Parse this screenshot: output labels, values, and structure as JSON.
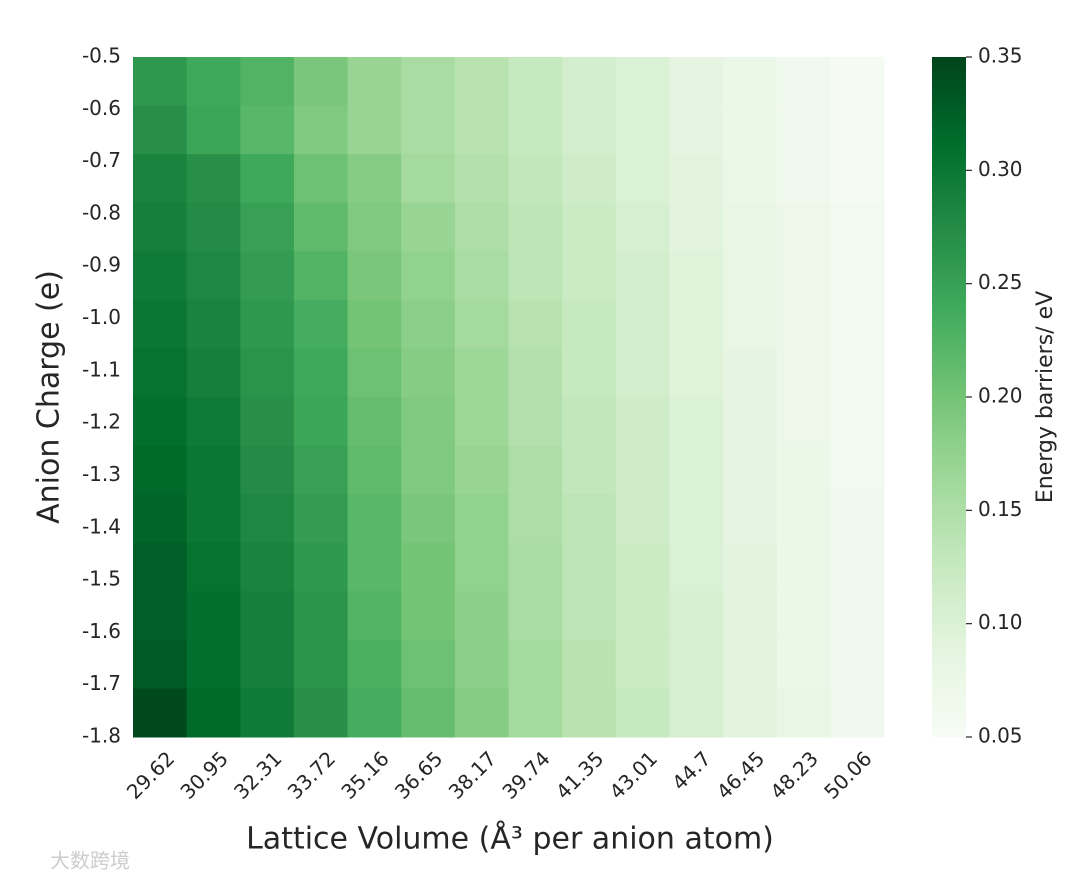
{
  "chart_data": {
    "type": "heatmap",
    "x_label": "Lattice Volume (Å³ per anion atom)",
    "y_label": "Anion Charge (e)",
    "colorbar_label": "Energy barriers/ eV",
    "watermark": "大数跨境",
    "x_categories": [
      "29.62",
      "30.95",
      "32.31",
      "33.72",
      "35.16",
      "36.65",
      "38.17",
      "39.74",
      "41.35",
      "43.01",
      "44.7",
      "46.45",
      "48.23",
      "50.06"
    ],
    "y_categories": [
      "-0.5",
      "-0.6",
      "-0.7",
      "-0.8",
      "-0.9",
      "-1.0",
      "-1.1",
      "-1.2",
      "-1.3",
      "-1.4",
      "-1.5",
      "-1.6",
      "-1.7",
      "-1.8"
    ],
    "z": [
      [
        0.26,
        0.24,
        0.225,
        0.195,
        0.17,
        0.155,
        0.14,
        0.125,
        0.11,
        0.1,
        0.085,
        0.075,
        0.065,
        0.055
      ],
      [
        0.27,
        0.245,
        0.22,
        0.19,
        0.17,
        0.155,
        0.14,
        0.125,
        0.11,
        0.1,
        0.085,
        0.075,
        0.065,
        0.055
      ],
      [
        0.285,
        0.27,
        0.24,
        0.205,
        0.185,
        0.16,
        0.145,
        0.13,
        0.115,
        0.1,
        0.09,
        0.075,
        0.065,
        0.055
      ],
      [
        0.29,
        0.275,
        0.25,
        0.215,
        0.19,
        0.17,
        0.15,
        0.135,
        0.12,
        0.105,
        0.09,
        0.08,
        0.07,
        0.06
      ],
      [
        0.295,
        0.28,
        0.255,
        0.225,
        0.195,
        0.175,
        0.155,
        0.135,
        0.12,
        0.11,
        0.095,
        0.08,
        0.07,
        0.06
      ],
      [
        0.3,
        0.285,
        0.26,
        0.235,
        0.2,
        0.18,
        0.16,
        0.14,
        0.125,
        0.11,
        0.095,
        0.08,
        0.07,
        0.06
      ],
      [
        0.305,
        0.29,
        0.265,
        0.24,
        0.205,
        0.185,
        0.165,
        0.145,
        0.125,
        0.11,
        0.095,
        0.085,
        0.07,
        0.06
      ],
      [
        0.31,
        0.295,
        0.27,
        0.245,
        0.21,
        0.19,
        0.165,
        0.145,
        0.13,
        0.115,
        0.1,
        0.085,
        0.07,
        0.06
      ],
      [
        0.315,
        0.3,
        0.275,
        0.25,
        0.215,
        0.19,
        0.17,
        0.15,
        0.13,
        0.115,
        0.1,
        0.085,
        0.075,
        0.06
      ],
      [
        0.32,
        0.3,
        0.28,
        0.255,
        0.22,
        0.195,
        0.175,
        0.15,
        0.135,
        0.115,
        0.1,
        0.085,
        0.075,
        0.065
      ],
      [
        0.325,
        0.305,
        0.285,
        0.26,
        0.22,
        0.2,
        0.175,
        0.155,
        0.135,
        0.12,
        0.1,
        0.09,
        0.075,
        0.065
      ],
      [
        0.325,
        0.31,
        0.29,
        0.265,
        0.225,
        0.2,
        0.18,
        0.155,
        0.135,
        0.12,
        0.105,
        0.09,
        0.075,
        0.065
      ],
      [
        0.33,
        0.31,
        0.29,
        0.265,
        0.23,
        0.205,
        0.18,
        0.16,
        0.14,
        0.12,
        0.105,
        0.09,
        0.075,
        0.065
      ],
      [
        0.345,
        0.315,
        0.295,
        0.27,
        0.235,
        0.21,
        0.185,
        0.16,
        0.14,
        0.125,
        0.105,
        0.09,
        0.08,
        0.065
      ]
    ],
    "clim": [
      0.05,
      0.35
    ],
    "cticks": [
      0.05,
      {
        "value": 0.1,
        "label": "0.10"
      },
      0.15,
      {
        "value": 0.2,
        "label": "0.20"
      },
      0.25,
      {
        "value": 0.3,
        "label": "0.30"
      },
      0.35
    ],
    "colormap": [
      "#f7fcf5",
      "#e5f5e0",
      "#c7e9c0",
      "#a1d99b",
      "#74c476",
      "#41ab5d",
      "#238b45",
      "#006d2c",
      "#00441b"
    ]
  }
}
